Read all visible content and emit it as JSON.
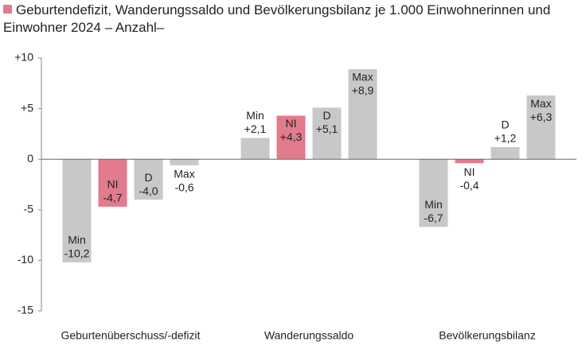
{
  "chart_data": {
    "type": "bar",
    "title": "Geburtendefizit, Wanderungssaldo und Bevölkerungsbilanz je 1.000 Einwohnerinnen und Einwohner 2024 – Anzahl–",
    "categories": [
      "Geburtenüberschuss/-defizit",
      "Wanderungssaldo",
      "Bevölkerungsbilanz"
    ],
    "series": [
      {
        "name": "Min",
        "color": "#c8c8c8",
        "values": [
          -10.2,
          2.1,
          -6.7
        ],
        "value_labels": [
          "-10,2",
          "+2,1",
          "-6,7"
        ]
      },
      {
        "name": "NI",
        "color": "#e27b8d",
        "values": [
          -4.7,
          4.3,
          -0.4
        ],
        "value_labels": [
          "-4,7",
          "+4,3",
          "-0,4"
        ]
      },
      {
        "name": "D",
        "color": "#c8c8c8",
        "values": [
          -4.0,
          5.1,
          1.2
        ],
        "value_labels": [
          "-4,0",
          "+5,1",
          "+1,2"
        ]
      },
      {
        "name": "Max",
        "color": "#c8c8c8",
        "values": [
          -0.6,
          8.9,
          6.3
        ],
        "value_labels": [
          "-0,6",
          "+8,9",
          "+6,3"
        ]
      }
    ],
    "ylim": [
      -15,
      10
    ],
    "yticks": [
      {
        "value": 10,
        "label": "+10"
      },
      {
        "value": 5,
        "label": "+5"
      },
      0,
      -5,
      -10,
      -15
    ],
    "grid": false
  }
}
